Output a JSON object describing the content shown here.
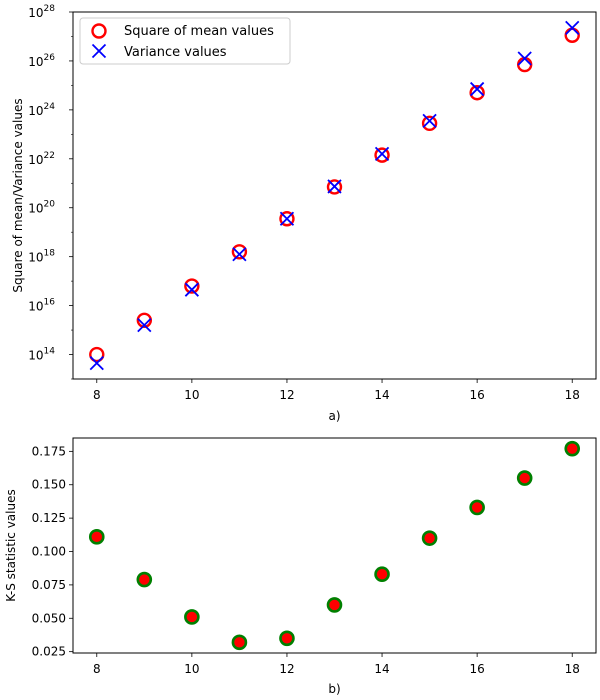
{
  "chart_data": [
    {
      "type": "scatter",
      "scale": "log",
      "xlabel": "a)",
      "ylabel": "Square of mean/Variance values",
      "xlim": [
        7.5,
        18.5
      ],
      "ylim_exp": [
        13,
        28
      ],
      "x_ticks": [
        "8",
        "10",
        "12",
        "14",
        "16",
        "18"
      ],
      "y_tick_exponents": [
        "14",
        "16",
        "18",
        "20",
        "22",
        "24",
        "26",
        "28"
      ],
      "y_tick_base": "10",
      "legend": {
        "position": "top-left",
        "items": [
          {
            "label": "Square of mean values",
            "marker": "open-circle",
            "color": "#ff0000"
          },
          {
            "label": "Variance values",
            "marker": "x",
            "color": "#0000ff"
          }
        ]
      },
      "series": [
        {
          "name": "Square of mean values",
          "x": [
            8,
            9,
            10,
            11,
            12,
            13,
            14,
            15,
            16,
            17,
            18
          ],
          "y_exp": [
            14.0,
            15.4,
            16.8,
            18.2,
            19.55,
            20.85,
            22.15,
            23.45,
            24.7,
            25.85,
            27.05
          ]
        },
        {
          "name": "Variance values",
          "x": [
            8,
            9,
            10,
            11,
            12,
            13,
            14,
            15,
            16,
            17,
            18
          ],
          "y_exp": [
            13.65,
            15.2,
            16.65,
            18.1,
            19.55,
            20.87,
            22.2,
            23.55,
            24.85,
            26.1,
            27.35
          ]
        }
      ]
    },
    {
      "type": "scatter",
      "xlabel": "b)",
      "ylabel": "K-S statistic values",
      "xlim": [
        7.5,
        18.5
      ],
      "ylim": [
        0.024,
        0.185
      ],
      "x_ticks": [
        "8",
        "10",
        "12",
        "14",
        "16",
        "18"
      ],
      "y_ticks": [
        "0.025",
        "0.050",
        "0.075",
        "0.100",
        "0.125",
        "0.150",
        "0.175"
      ],
      "marker": {
        "fill": "#ff0000",
        "edge": "#008000"
      },
      "series": [
        {
          "name": "K-S statistic",
          "x": [
            8,
            9,
            10,
            11,
            12,
            13,
            14,
            15,
            16,
            17,
            18
          ],
          "y": [
            0.111,
            0.079,
            0.051,
            0.032,
            0.035,
            0.06,
            0.083,
            0.11,
            0.133,
            0.155,
            0.177
          ]
        }
      ]
    }
  ]
}
